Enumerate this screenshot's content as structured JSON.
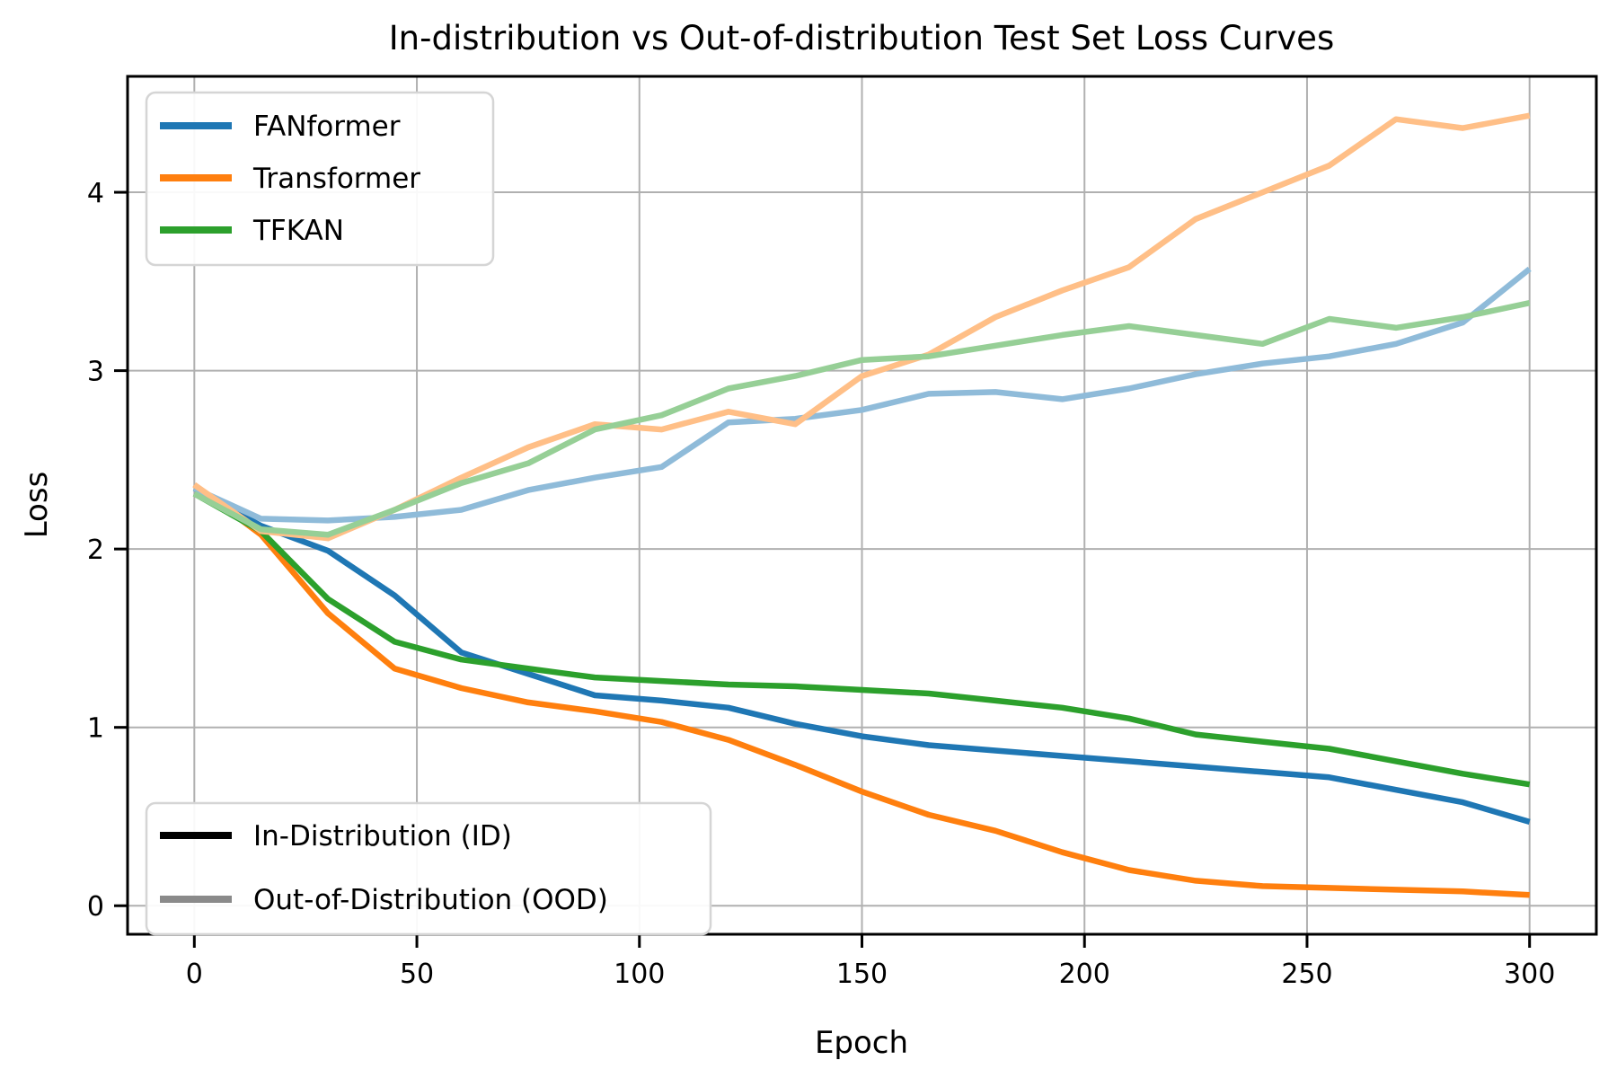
{
  "title": "In-distribution vs Out-of-distribution Test Set Loss Curves",
  "axes": {
    "xlabel": "Epoch",
    "ylabel": "Loss",
    "x_ticks": [
      0,
      50,
      100,
      150,
      200,
      250,
      300
    ],
    "y_ticks": [
      0,
      1,
      2,
      3,
      4
    ]
  },
  "chart_data": {
    "type": "line",
    "title": "In-distribution vs Out-of-distribution Test Set Loss Curves",
    "xlabel": "Epoch",
    "ylabel": "Loss",
    "xlim": [
      -15,
      315
    ],
    "ylim": [
      -0.16,
      4.65
    ],
    "grid": true,
    "legend_positions": [
      "upper left",
      "lower left"
    ],
    "x": [
      0,
      15,
      30,
      45,
      60,
      75,
      90,
      105,
      120,
      135,
      150,
      165,
      180,
      195,
      210,
      225,
      240,
      255,
      270,
      285,
      300
    ],
    "series": [
      {
        "name": "FANformer",
        "distribution": "ID",
        "color": "#1f77b4",
        "values": [
          2.34,
          2.13,
          1.99,
          1.74,
          1.42,
          1.3,
          1.18,
          1.15,
          1.11,
          1.02,
          0.95,
          0.9,
          0.87,
          0.84,
          0.81,
          0.78,
          0.75,
          0.72,
          0.65,
          0.58,
          0.47
        ]
      },
      {
        "name": "Transformer",
        "distribution": "ID",
        "color": "#ff7f0e",
        "values": [
          2.36,
          2.08,
          1.64,
          1.33,
          1.22,
          1.14,
          1.09,
          1.03,
          0.93,
          0.79,
          0.64,
          0.51,
          0.42,
          0.3,
          0.2,
          0.14,
          0.11,
          0.1,
          0.09,
          0.08,
          0.06
        ]
      },
      {
        "name": "TFKAN",
        "distribution": "ID",
        "color": "#2ca02c",
        "values": [
          2.31,
          2.1,
          1.72,
          1.48,
          1.38,
          1.33,
          1.28,
          1.26,
          1.24,
          1.23,
          1.21,
          1.19,
          1.15,
          1.11,
          1.05,
          0.96,
          0.92,
          0.88,
          0.81,
          0.74,
          0.68
        ]
      },
      {
        "name": "FANformer",
        "distribution": "OOD",
        "color": "#8fbbd9",
        "values": [
          2.34,
          2.17,
          2.16,
          2.18,
          2.22,
          2.33,
          2.4,
          2.46,
          2.71,
          2.73,
          2.78,
          2.87,
          2.88,
          2.84,
          2.9,
          2.98,
          3.04,
          3.08,
          3.15,
          3.27,
          3.57
        ]
      },
      {
        "name": "Transformer",
        "distribution": "OOD",
        "color": "#ffbf87",
        "values": [
          2.36,
          2.1,
          2.06,
          2.22,
          2.4,
          2.57,
          2.7,
          2.67,
          2.77,
          2.7,
          2.97,
          3.09,
          3.3,
          3.45,
          3.58,
          3.85,
          4.0,
          4.15,
          4.41,
          4.36,
          4.43
        ]
      },
      {
        "name": "TFKAN",
        "distribution": "OOD",
        "color": "#96cf96",
        "values": [
          2.31,
          2.11,
          2.08,
          2.22,
          2.37,
          2.48,
          2.67,
          2.75,
          2.9,
          2.97,
          3.06,
          3.08,
          3.14,
          3.2,
          3.25,
          3.2,
          3.15,
          3.29,
          3.24,
          3.3,
          3.38
        ]
      }
    ]
  },
  "legend_models": [
    {
      "label": "FANformer",
      "color": "#1f77b4"
    },
    {
      "label": "Transformer",
      "color": "#ff7f0e"
    },
    {
      "label": "TFKAN",
      "color": "#2ca02c"
    }
  ],
  "legend_distributions": [
    {
      "label": "In-Distribution (ID)",
      "color": "#000000"
    },
    {
      "label": "Out-of-Distribution (OOD)",
      "color": "#8a8a8a"
    }
  ]
}
